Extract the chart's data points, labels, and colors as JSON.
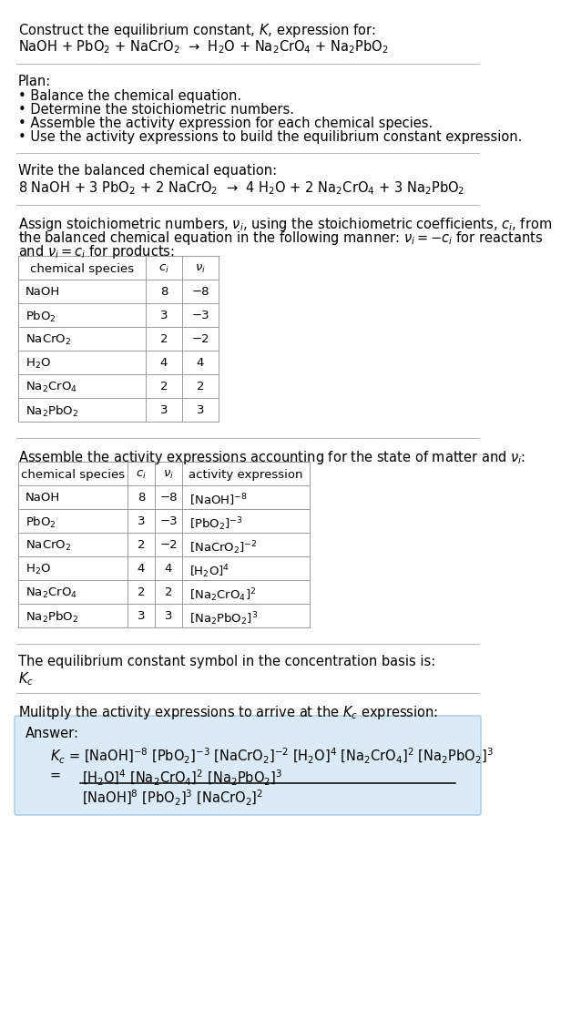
{
  "bg_color": "#ffffff",
  "fs": 10.5,
  "fs_small": 9.5,
  "sections": {
    "title_line1": "Construct the equilibrium constant, $K$, expression for:",
    "title_line2": "NaOH + PbO$_2$ + NaCrO$_2$  →  H$_2$O + Na$_2$CrO$_4$ + Na$_2$PbO$_2$",
    "plan_header": "Plan:",
    "plan_items": [
      "• Balance the chemical equation.",
      "• Determine the stoichiometric numbers.",
      "• Assemble the activity expression for each chemical species.",
      "• Use the activity expressions to build the equilibrium constant expression."
    ],
    "balanced_header": "Write the balanced chemical equation:",
    "balanced_eq": "8 NaOH + 3 PbO$_2$ + 2 NaCrO$_2$  →  4 H$_2$O + 2 Na$_2$CrO$_4$ + 3 Na$_2$PbO$_2$",
    "stoich_intro1": "Assign stoichiometric numbers, $\\nu_i$, using the stoichiometric coefficients, $c_i$, from",
    "stoich_intro2": "the balanced chemical equation in the following manner: $\\nu_i = -c_i$ for reactants",
    "stoich_intro3": "and $\\nu_i = c_i$ for products:",
    "stoich_headers": [
      "chemical species",
      "$c_i$",
      "$\\nu_i$"
    ],
    "stoich_rows": [
      [
        "NaOH",
        "8",
        "−8"
      ],
      [
        "PbO$_2$",
        "3",
        "−3"
      ],
      [
        "NaCrO$_2$",
        "2",
        "−2"
      ],
      [
        "H$_2$O",
        "4",
        "4"
      ],
      [
        "Na$_2$CrO$_4$",
        "2",
        "2"
      ],
      [
        "Na$_2$PbO$_2$",
        "3",
        "3"
      ]
    ],
    "activity_header": "Assemble the activity expressions accounting for the state of matter and $\\nu_i$:",
    "activity_headers": [
      "chemical species",
      "$c_i$",
      "$\\nu_i$",
      "activity expression"
    ],
    "activity_rows": [
      [
        "NaOH",
        "8",
        "−8",
        "[NaOH]$^{-8}$"
      ],
      [
        "PbO$_2$",
        "3",
        "−3",
        "[PbO$_2$]$^{-3}$"
      ],
      [
        "NaCrO$_2$",
        "2",
        "−2",
        "[NaCrO$_2$]$^{-2}$"
      ],
      [
        "H$_2$O",
        "4",
        "4",
        "[H$_2$O]$^4$"
      ],
      [
        "Na$_2$CrO$_4$",
        "2",
        "2",
        "[Na$_2$CrO$_4$]$^2$"
      ],
      [
        "Na$_2$PbO$_2$",
        "3",
        "3",
        "[Na$_2$PbO$_2$]$^3$"
      ]
    ],
    "kc_text": "The equilibrium constant symbol in the concentration basis is:",
    "kc_symbol": "$K_c$",
    "multiply_text": "Mulitply the activity expressions to arrive at the $K_c$ expression:",
    "answer_label": "Answer:",
    "ans_line1": "$K_c$ = [NaOH]$^{-8}$ [PbO$_2$]$^{-3}$ [NaCrO$_2$]$^{-2}$ [H$_2$O]$^4$ [Na$_2$CrO$_4$]$^2$ [Na$_2$PbO$_2$]$^3$",
    "ans_num": "[H$_2$O]$^4$ [Na$_2$CrO$_4$]$^2$ [Na$_2$PbO$_2$]$^3$",
    "ans_den": "[NaOH]$^8$ [PbO$_2$]$^3$ [NaCrO$_2$]$^2$"
  },
  "answer_box_color": "#daeaf6",
  "divider_color": "#bbbbbb",
  "table_border_color": "#999999"
}
